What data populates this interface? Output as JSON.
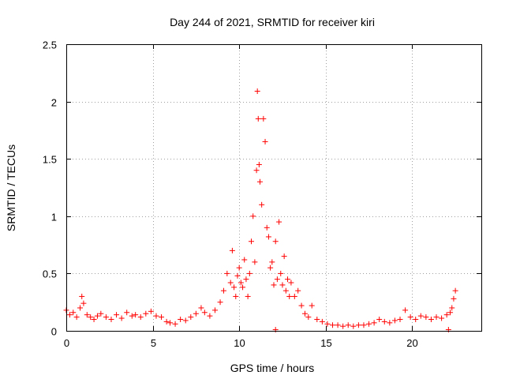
{
  "chart_data": {
    "type": "scatter",
    "title": "Day 244 of 2021, SRMTID for receiver kiri",
    "xlabel": "GPS time / hours",
    "ylabel": "SRMTID / TECUs",
    "xlim": [
      0,
      24
    ],
    "ylim": [
      0,
      2.5
    ],
    "xticks": [
      0,
      5,
      10,
      15,
      20
    ],
    "xtick_labels": [
      "0",
      "5",
      "10",
      "15",
      "20"
    ],
    "yticks": [
      0,
      0.5,
      1,
      1.5,
      2,
      2.5
    ],
    "ytick_labels": [
      "0",
      "0.5",
      "1",
      "1.5",
      "2",
      "2.5"
    ],
    "grid": true,
    "legend": "none",
    "series": [
      {
        "name": "SRMTID",
        "color": "#ff0000",
        "marker": "plus",
        "x": [
          0.0,
          0.2,
          0.4,
          0.6,
          0.8,
          0.9,
          1.0,
          1.2,
          1.4,
          1.6,
          1.8,
          2.0,
          2.3,
          2.6,
          2.9,
          3.2,
          3.5,
          3.8,
          4.0,
          4.3,
          4.6,
          4.9,
          5.2,
          5.5,
          5.8,
          6.0,
          6.3,
          6.6,
          6.9,
          7.2,
          7.5,
          7.8,
          8.0,
          8.3,
          8.6,
          8.9,
          9.1,
          9.3,
          9.5,
          9.6,
          9.7,
          9.8,
          9.9,
          10.0,
          10.1,
          10.2,
          10.3,
          10.4,
          10.5,
          10.6,
          10.7,
          10.8,
          10.9,
          11.0,
          11.05,
          11.1,
          11.15,
          11.2,
          11.3,
          11.4,
          11.5,
          11.6,
          11.7,
          11.8,
          11.9,
          12.0,
          12.1,
          12.2,
          12.3,
          12.4,
          12.5,
          12.6,
          12.7,
          12.8,
          12.9,
          13.0,
          13.2,
          13.4,
          13.6,
          13.8,
          14.0,
          14.2,
          14.5,
          14.8,
          15.1,
          15.4,
          15.7,
          16.0,
          16.3,
          16.6,
          16.9,
          17.2,
          17.5,
          17.8,
          18.1,
          18.4,
          18.7,
          19.0,
          19.3,
          19.6,
          19.9,
          20.2,
          20.5,
          20.8,
          21.1,
          21.4,
          21.7,
          22.0,
          22.2,
          22.3,
          22.4,
          22.5,
          12.1,
          22.1
        ],
        "y": [
          0.18,
          0.14,
          0.16,
          0.12,
          0.2,
          0.3,
          0.24,
          0.14,
          0.12,
          0.1,
          0.13,
          0.15,
          0.12,
          0.1,
          0.14,
          0.11,
          0.16,
          0.13,
          0.14,
          0.12,
          0.15,
          0.17,
          0.13,
          0.12,
          0.08,
          0.07,
          0.06,
          0.1,
          0.09,
          0.12,
          0.15,
          0.2,
          0.16,
          0.13,
          0.18,
          0.25,
          0.35,
          0.5,
          0.42,
          0.7,
          0.38,
          0.3,
          0.48,
          0.55,
          0.42,
          0.38,
          0.62,
          0.45,
          0.3,
          0.5,
          0.78,
          1.0,
          0.6,
          1.4,
          2.09,
          1.85,
          1.45,
          1.3,
          1.1,
          1.85,
          1.65,
          0.9,
          0.82,
          0.55,
          0.6,
          0.4,
          0.78,
          0.45,
          0.95,
          0.5,
          0.4,
          0.65,
          0.35,
          0.45,
          0.3,
          0.42,
          0.3,
          0.35,
          0.22,
          0.15,
          0.12,
          0.22,
          0.1,
          0.08,
          0.06,
          0.05,
          0.05,
          0.04,
          0.05,
          0.04,
          0.05,
          0.05,
          0.06,
          0.07,
          0.1,
          0.08,
          0.07,
          0.09,
          0.1,
          0.18,
          0.12,
          0.1,
          0.13,
          0.12,
          0.1,
          0.12,
          0.11,
          0.14,
          0.16,
          0.2,
          0.28,
          0.35,
          0.01,
          0.01
        ]
      }
    ]
  }
}
